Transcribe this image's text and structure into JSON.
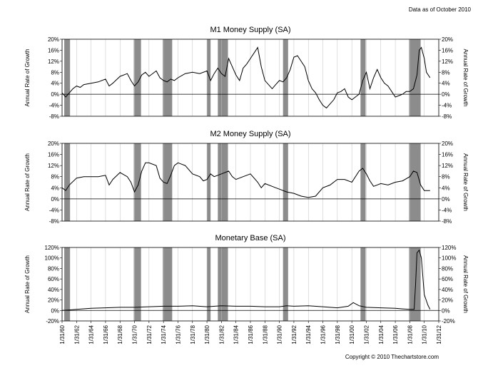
{
  "header": {
    "note": "Data as of October 2010"
  },
  "footer": {
    "copyright": "Copyright © 2010 Thechartstore.com"
  },
  "x_axis": {
    "min": 1960.0,
    "max": 2012.0,
    "tick_years": [
      1960,
      1962,
      1964,
      1966,
      1968,
      1970,
      1972,
      1974,
      1976,
      1978,
      1980,
      1982,
      1984,
      1986,
      1988,
      1990,
      1992,
      1994,
      1996,
      1998,
      2000,
      2002,
      2004,
      2006,
      2008,
      2010,
      2012
    ],
    "tick_labels": [
      "1/31/60",
      "1/31/62",
      "1/31/64",
      "1/31/66",
      "1/31/68",
      "1/31/70",
      "1/31/72",
      "1/31/74",
      "1/31/76",
      "1/31/78",
      "1/31/80",
      "1/31/82",
      "1/31/84",
      "1/31/86",
      "1/31/88",
      "1/31/90",
      "1/31/92",
      "1/31/94",
      "1/31/96",
      "1/31/98",
      "1/31/00",
      "1/31/02",
      "1/31/04",
      "1/31/06",
      "1/31/08",
      "1/31/10",
      "1/31/12"
    ]
  },
  "recessions": [
    [
      1960.3,
      1961.1
    ],
    [
      1969.9,
      1970.9
    ],
    [
      1973.9,
      1975.2
    ],
    [
      1980.0,
      1980.5
    ],
    [
      1981.5,
      1982.9
    ],
    [
      1990.5,
      1991.2
    ],
    [
      2001.2,
      2001.9
    ],
    [
      2007.9,
      2009.5
    ]
  ],
  "colors": {
    "line": "#000000",
    "recession": "#8c8c8c",
    "grid": "#bfbfbf",
    "frame": "#000000"
  },
  "chart_data": [
    {
      "type": "line",
      "title": "M1 Money Supply (SA)",
      "ylabel": "Annual Rate of Growth",
      "ylabel_right": "Annual Rate of Growth",
      "ylim": [
        -8,
        20
      ],
      "y_ticks": [
        -8,
        -4,
        0,
        4,
        8,
        12,
        16,
        20
      ],
      "y_tick_labels": [
        "-8%",
        "-4%",
        "0%",
        "4%",
        "8%",
        "12%",
        "16%",
        "20%"
      ],
      "x": [
        1960.0,
        1960.5,
        1961.0,
        1961.5,
        1962.0,
        1962.5,
        1963.0,
        1964.0,
        1965.0,
        1966.0,
        1966.5,
        1967.0,
        1968.0,
        1969.0,
        1969.5,
        1970.0,
        1970.5,
        1971.0,
        1971.5,
        1972.0,
        1973.0,
        1973.5,
        1974.0,
        1974.5,
        1975.0,
        1975.5,
        1976.0,
        1977.0,
        1978.0,
        1979.0,
        1980.0,
        1980.5,
        1981.0,
        1981.5,
        1982.0,
        1982.5,
        1983.0,
        1983.5,
        1984.0,
        1984.5,
        1985.0,
        1985.5,
        1986.0,
        1986.5,
        1987.0,
        1987.5,
        1988.0,
        1989.0,
        1989.5,
        1990.0,
        1990.5,
        1991.0,
        1991.5,
        1992.0,
        1992.5,
        1993.0,
        1993.5,
        1994.0,
        1994.5,
        1995.0,
        1995.5,
        1996.0,
        1996.5,
        1997.0,
        1997.5,
        1998.0,
        1998.5,
        1999.0,
        1999.5,
        2000.0,
        2000.5,
        2001.0,
        2001.5,
        2002.0,
        2002.5,
        2003.0,
        2003.5,
        2004.0,
        2004.5,
        2005.0,
        2005.5,
        2006.0,
        2006.5,
        2007.0,
        2007.5,
        2008.0,
        2008.5,
        2009.0,
        2009.3,
        2009.6,
        2010.0,
        2010.3,
        2010.8
      ],
      "values": [
        0.5,
        -1,
        0.5,
        2,
        3,
        2.5,
        3.5,
        4,
        4.5,
        5.5,
        3,
        4,
        6.5,
        7.5,
        5,
        3,
        4.5,
        7,
        8,
        6.5,
        8.5,
        6,
        5,
        4.5,
        5.5,
        5,
        6,
        7.5,
        8,
        7.5,
        8.5,
        5,
        7.5,
        9.5,
        7.5,
        6.5,
        13,
        10,
        7,
        5,
        9.5,
        11,
        13,
        15,
        17,
        10,
        5,
        2,
        3.5,
        5,
        4.5,
        6,
        9,
        13.5,
        14,
        12,
        10,
        5,
        2,
        0.5,
        -2,
        -4,
        -5,
        -3.5,
        -2,
        0.5,
        1,
        2,
        -1,
        -2,
        -1,
        0,
        5,
        8,
        2,
        6,
        9,
        6,
        4,
        3,
        1,
        -1,
        -0.5,
        0,
        1,
        1,
        2,
        7,
        16,
        17,
        13,
        8,
        6
      ]
    },
    {
      "type": "line",
      "title": "M2 Money Supply (SA)",
      "ylabel": "Annual Rate of Growth",
      "ylabel_right": "Annual Rate of Growth",
      "ylim": [
        -8,
        20
      ],
      "y_ticks": [
        -8,
        -4,
        0,
        4,
        8,
        12,
        16,
        20
      ],
      "y_tick_labels": [
        "-8%",
        "-4%",
        "0%",
        "4%",
        "8%",
        "12%",
        "16%",
        "20%"
      ],
      "x": [
        1960.0,
        1960.5,
        1961.0,
        1962.0,
        1963.0,
        1964.0,
        1965.0,
        1966.0,
        1966.5,
        1967.0,
        1968.0,
        1969.0,
        1969.5,
        1970.0,
        1970.5,
        1971.0,
        1971.5,
        1972.0,
        1973.0,
        1973.5,
        1974.0,
        1974.5,
        1975.0,
        1975.5,
        1976.0,
        1977.0,
        1978.0,
        1979.0,
        1979.5,
        1980.0,
        1980.5,
        1981.0,
        1982.0,
        1983.0,
        1983.5,
        1984.0,
        1985.0,
        1986.0,
        1987.0,
        1987.5,
        1988.0,
        1989.0,
        1989.5,
        1990.0,
        1991.0,
        1992.0,
        1993.0,
        1994.0,
        1995.0,
        1996.0,
        1997.0,
        1998.0,
        1999.0,
        2000.0,
        2001.0,
        2001.5,
        2002.0,
        2002.5,
        2003.0,
        2004.0,
        2005.0,
        2006.0,
        2007.0,
        2008.0,
        2008.5,
        2009.0,
        2009.5,
        2010.0,
        2010.8
      ],
      "values": [
        4,
        3,
        5,
        7.5,
        8,
        8,
        8,
        8.5,
        5,
        7,
        9.5,
        8,
        6,
        2.5,
        5,
        10,
        13,
        13,
        12,
        7.5,
        6,
        5.5,
        8.5,
        12,
        13,
        12,
        9,
        8,
        6.5,
        7,
        9,
        8,
        9,
        10,
        8,
        7,
        8,
        9,
        6,
        4,
        5.5,
        4.5,
        4,
        3.5,
        2.5,
        2,
        1,
        0.5,
        1,
        4,
        5,
        7,
        7,
        6,
        10,
        11,
        9,
        6.5,
        4.5,
        5.5,
        5,
        6,
        6.5,
        8,
        10,
        9.5,
        5,
        3,
        3
      ]
    },
    {
      "type": "line",
      "title": "Monetary Base (SA)",
      "ylabel": "Annual Rate of Growth",
      "ylabel_right": "Annual Rate of Growth",
      "ylim": [
        -20,
        120
      ],
      "y_ticks": [
        -20,
        0,
        20,
        40,
        60,
        80,
        100,
        120
      ],
      "y_tick_labels": [
        "-20%",
        "0%",
        "20%",
        "40%",
        "60%",
        "80%",
        "100%",
        "120%"
      ],
      "x": [
        1960.0,
        1961.0,
        1962.0,
        1964.0,
        1966.0,
        1968.0,
        1970.0,
        1972.0,
        1974.0,
        1976.0,
        1978.0,
        1980.0,
        1982.0,
        1984.0,
        1986.0,
        1988.0,
        1990.0,
        1991.0,
        1992.0,
        1994.0,
        1996.0,
        1998.0,
        1999.5,
        2000.2,
        2001.0,
        2002.0,
        2004.0,
        2006.0,
        2007.0,
        2008.0,
        2008.6,
        2008.8,
        2009.0,
        2009.3,
        2009.6,
        2010.0,
        2010.5,
        2010.8
      ],
      "values": [
        0,
        1,
        2,
        4,
        5,
        6,
        6,
        7,
        8,
        8,
        9,
        7,
        9,
        8,
        8,
        7,
        7,
        9,
        8,
        9,
        7,
        5,
        8,
        15,
        9,
        6,
        5,
        4,
        3,
        2,
        2,
        50,
        110,
        115,
        100,
        30,
        10,
        2
      ]
    }
  ]
}
